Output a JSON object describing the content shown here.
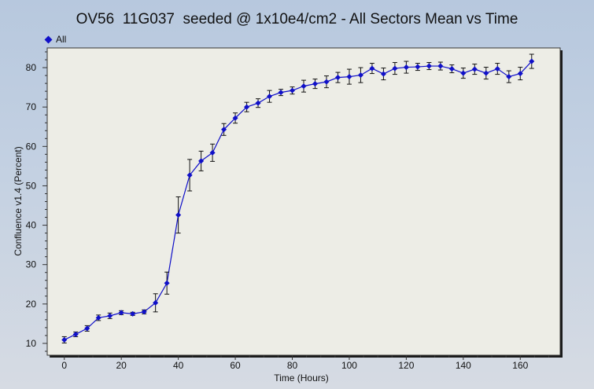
{
  "chart_data": {
    "type": "line",
    "title": "OV56  11G037  seeded @ 1x10e4/cm2 - All Sectors Mean vs Time",
    "xlabel": "Time (Hours)",
    "ylabel": "Confluence v1.4 (Percent)",
    "xlim": [
      -6,
      174
    ],
    "ylim": [
      7,
      85
    ],
    "xticks": [
      0,
      20,
      40,
      60,
      80,
      100,
      120,
      140,
      160
    ],
    "yticks": [
      10,
      20,
      30,
      40,
      50,
      60,
      70,
      80
    ],
    "grid": false,
    "legend_position": "top-left",
    "series": [
      {
        "name": "All",
        "color": "#1010c8",
        "x": [
          0,
          4,
          8,
          12,
          16,
          20,
          24,
          28,
          32,
          36,
          40,
          44,
          48,
          52,
          56,
          60,
          64,
          68,
          72,
          76,
          80,
          84,
          88,
          92,
          96,
          100,
          104,
          108,
          112,
          116,
          120,
          124,
          128,
          132,
          136,
          140,
          144,
          148,
          152,
          156,
          160,
          164
        ],
        "y": [
          10.9,
          12.3,
          13.8,
          16.5,
          17.0,
          17.8,
          17.5,
          18.0,
          20.3,
          25.3,
          42.6,
          52.7,
          56.3,
          58.4,
          64.3,
          67.2,
          70.0,
          71.0,
          72.7,
          73.7,
          74.2,
          75.3,
          75.9,
          76.4,
          77.5,
          77.7,
          78.1,
          79.8,
          78.4,
          79.8,
          80.1,
          80.2,
          80.4,
          80.4,
          79.7,
          78.6,
          79.6,
          78.6,
          79.7,
          77.7,
          78.5,
          81.6
        ],
        "err": [
          0.8,
          0.6,
          0.7,
          0.7,
          0.7,
          0.5,
          0.4,
          0.5,
          2.3,
          2.8,
          4.6,
          4.0,
          2.5,
          2.2,
          1.5,
          1.3,
          1.2,
          1.1,
          1.5,
          0.8,
          0.9,
          1.5,
          1.2,
          1.5,
          1.3,
          1.9,
          1.9,
          1.3,
          1.5,
          1.5,
          1.5,
          0.9,
          0.9,
          1.0,
          1.0,
          1.3,
          1.3,
          1.5,
          1.4,
          1.5,
          1.6,
          1.8
        ]
      }
    ]
  }
}
